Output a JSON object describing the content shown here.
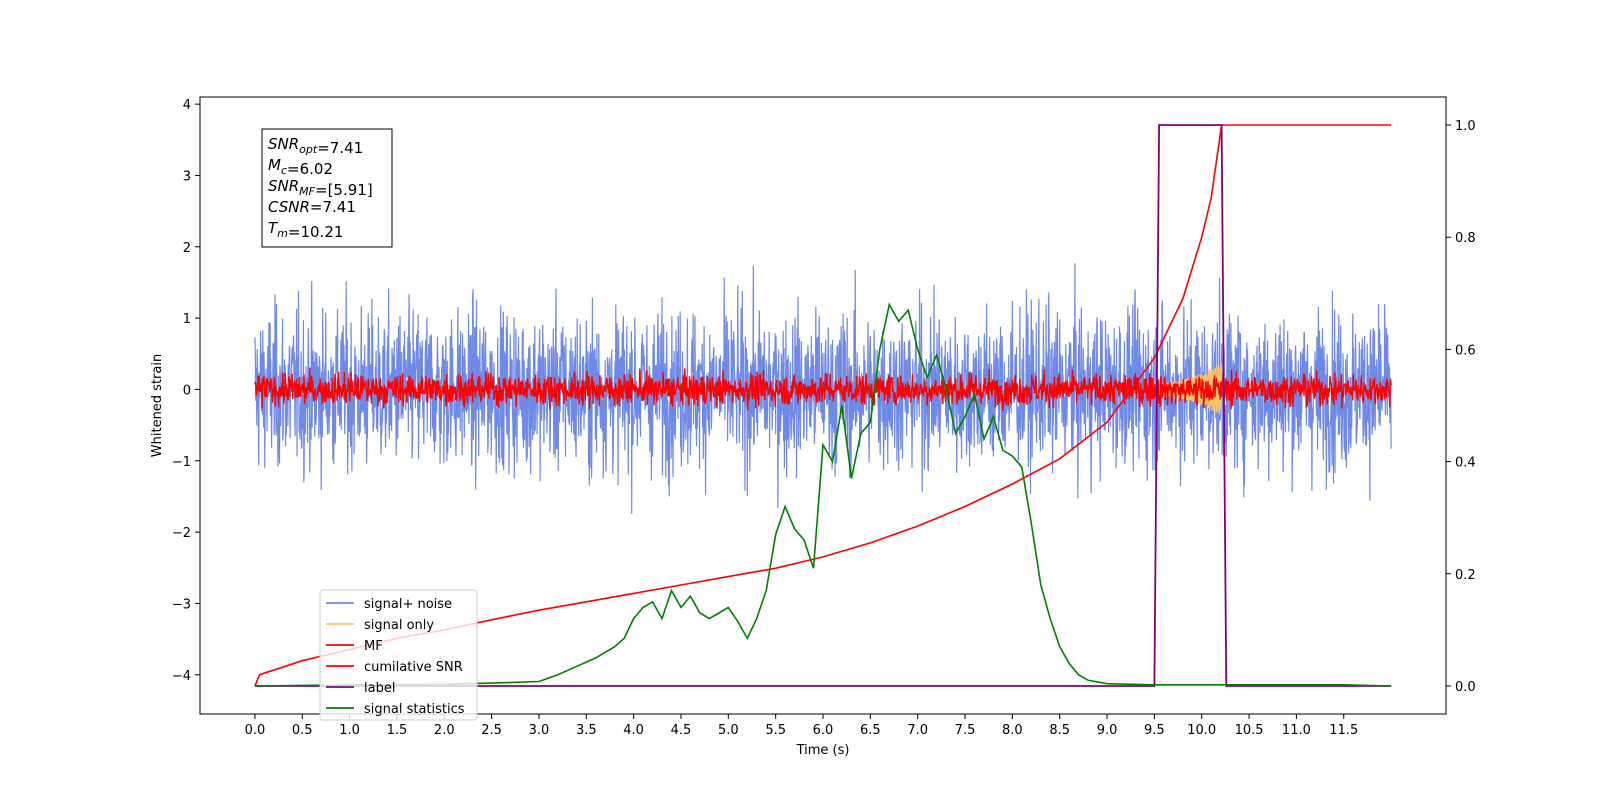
{
  "chart_data": {
    "type": "line",
    "xlabel": "Time (s)",
    "ylabel": "Whitened strain",
    "ylabel_right": "",
    "xlim": [
      -0.58,
      12.58
    ],
    "ylim": [
      -4.55,
      4.1
    ],
    "ylim_right": [
      -0.05,
      1.05
    ],
    "x_ticks": [
      0.0,
      0.5,
      1.0,
      1.5,
      2.0,
      2.5,
      3.0,
      3.5,
      4.0,
      4.5,
      5.0,
      5.5,
      6.0,
      6.5,
      7.0,
      7.5,
      8.0,
      8.5,
      9.0,
      9.5,
      10.0,
      10.5,
      11.0,
      11.5
    ],
    "x_tick_labels": [
      "0.0",
      "0.5",
      "1.0",
      "1.5",
      "2.0",
      "2.5",
      "3.0",
      "3.5",
      "4.0",
      "4.5",
      "5.0",
      "5.5",
      "6.0",
      "6.5",
      "7.0",
      "7.5",
      "8.0",
      "8.5",
      "9.0",
      "9.5",
      "10.0",
      "10.5",
      "11.0",
      "11.5"
    ],
    "y_ticks": [
      -4,
      -3,
      -2,
      -1,
      0,
      1,
      2,
      3,
      4
    ],
    "y_tick_labels": [
      "−4",
      "−3",
      "−2",
      "−1",
      "0",
      "1",
      "2",
      "3",
      "4"
    ],
    "y_right_ticks": [
      0.0,
      0.2,
      0.4,
      0.6,
      0.8,
      1.0
    ],
    "y_right_tick_labels": [
      "0.0",
      "0.2",
      "0.4",
      "0.6",
      "0.8",
      "1.0"
    ],
    "grid": false,
    "legend_position": "lower-left",
    "series": [
      {
        "name": "signal+ noise",
        "color": "#6f89e6",
        "axis": "left",
        "x_range": [
          0,
          12
        ],
        "description_amplitude": 1.0
      },
      {
        "name": "signal only",
        "color": "#f5c46a",
        "axis": "left",
        "x_range": [
          9.5,
          10.21
        ]
      },
      {
        "name": "MF",
        "color": "#ff0000",
        "axis": "left",
        "x_range": [
          0,
          12
        ],
        "description_amplitude": 0.12
      },
      {
        "name": "cumilative SNR",
        "color": "#ff0000",
        "axis": "right",
        "x": [
          0.0,
          0.05,
          0.5,
          1.0,
          1.5,
          2.0,
          2.5,
          3.0,
          3.5,
          4.0,
          4.5,
          5.0,
          5.5,
          6.0,
          6.5,
          7.0,
          7.5,
          8.0,
          8.5,
          9.0,
          9.5,
          9.8,
          10.0,
          10.1,
          10.21,
          10.25,
          12.0
        ],
        "y": [
          0.0,
          0.02,
          0.045,
          0.065,
          0.085,
          0.1,
          0.118,
          0.135,
          0.15,
          0.165,
          0.18,
          0.195,
          0.21,
          0.23,
          0.255,
          0.285,
          0.32,
          0.36,
          0.405,
          0.47,
          0.585,
          0.69,
          0.8,
          0.87,
          1.0,
          1.0,
          1.0
        ]
      },
      {
        "name": "label",
        "color": "#800080",
        "axis": "right",
        "x": [
          0.0,
          9.5,
          9.55,
          10.21,
          10.26,
          12.0
        ],
        "y": [
          0.0,
          0.0,
          1.0,
          1.0,
          0.0,
          0.0
        ]
      },
      {
        "name": "signal statistics",
        "color": "#008000",
        "axis": "right",
        "x": [
          0.0,
          1.0,
          2.0,
          2.5,
          3.0,
          3.2,
          3.4,
          3.6,
          3.8,
          3.9,
          4.0,
          4.1,
          4.2,
          4.3,
          4.4,
          4.5,
          4.6,
          4.7,
          4.8,
          4.9,
          5.0,
          5.1,
          5.2,
          5.3,
          5.4,
          5.5,
          5.6,
          5.7,
          5.8,
          5.9,
          6.0,
          6.1,
          6.2,
          6.3,
          6.4,
          6.5,
          6.6,
          6.7,
          6.8,
          6.9,
          7.0,
          7.1,
          7.2,
          7.3,
          7.4,
          7.5,
          7.6,
          7.7,
          7.8,
          7.9,
          8.0,
          8.1,
          8.2,
          8.3,
          8.4,
          8.5,
          8.6,
          8.7,
          8.8,
          9.0,
          9.5,
          10.0,
          11.0,
          11.5,
          12.0
        ],
        "y": [
          0.0,
          0.002,
          0.003,
          0.005,
          0.008,
          0.02,
          0.035,
          0.05,
          0.07,
          0.085,
          0.12,
          0.14,
          0.15,
          0.12,
          0.17,
          0.14,
          0.16,
          0.13,
          0.12,
          0.13,
          0.14,
          0.115,
          0.085,
          0.12,
          0.17,
          0.27,
          0.32,
          0.28,
          0.26,
          0.21,
          0.43,
          0.4,
          0.5,
          0.37,
          0.45,
          0.47,
          0.6,
          0.68,
          0.65,
          0.67,
          0.6,
          0.55,
          0.59,
          0.53,
          0.45,
          0.48,
          0.52,
          0.44,
          0.48,
          0.42,
          0.41,
          0.39,
          0.29,
          0.18,
          0.12,
          0.07,
          0.04,
          0.02,
          0.01,
          0.004,
          0.002,
          0.002,
          0.002,
          0.002,
          0.0
        ]
      }
    ],
    "annotation": {
      "lines": [
        [
          {
            "t": "SNR",
            "i": true
          },
          {
            "t": "opt",
            "i": true,
            "sub": true
          },
          {
            "t": "=7.41"
          }
        ],
        [
          {
            "t": "M",
            "i": true
          },
          {
            "t": "c",
            "i": true,
            "sub": true
          },
          {
            "t": "=6.02"
          }
        ],
        [
          {
            "t": "SNR",
            "i": true
          },
          {
            "t": "MF",
            "i": true,
            "sub": true
          },
          {
            "t": "=[5.91]"
          }
        ],
        [
          {
            "t": "CSNR",
            "i": true
          },
          {
            "t": "=7.41"
          }
        ],
        [
          {
            "t": "T",
            "i": true
          },
          {
            "t": "m",
            "i": true,
            "sub": true
          },
          {
            "t": "=10.21"
          }
        ]
      ]
    }
  }
}
